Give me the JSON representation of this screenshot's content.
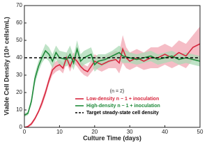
{
  "chart_data": {
    "type": "line",
    "xlabel": "Culture Time (days)",
    "ylabel": "Viable Cell Density (10⁶ cells/mL)",
    "annotation": "(n = 2)",
    "xlim": [
      0,
      50
    ],
    "xticks": [
      0,
      10,
      20,
      30,
      40,
      50
    ],
    "ylim": [
      0,
      70
    ],
    "yticks": [
      0,
      10,
      20,
      30,
      40,
      50,
      60,
      70
    ],
    "series": [
      {
        "name": "Low-density n − 1 + inoculation",
        "color": "#d7263d",
        "band_color": "#f2a7b3",
        "x": [
          0,
          1,
          2,
          3,
          4,
          5,
          6,
          7,
          8,
          9,
          10,
          11,
          12,
          13,
          14,
          15,
          16,
          17,
          18,
          20,
          22,
          24,
          26,
          27,
          28,
          29,
          30,
          32,
          34,
          36,
          38,
          40,
          42,
          44,
          46,
          48,
          50
        ],
        "values": [
          0,
          0.5,
          2,
          5,
          9,
          14,
          20,
          27,
          33,
          35,
          36,
          34,
          40,
          35,
          40,
          38,
          35,
          33,
          32,
          38,
          36,
          38,
          39,
          37,
          45,
          40,
          38,
          40,
          38,
          40,
          40,
          42,
          40,
          43,
          41,
          46,
          48
        ],
        "lower": [
          0,
          0,
          1,
          4,
          8,
          12,
          18,
          25,
          30,
          32,
          33,
          31,
          37,
          32,
          37,
          35,
          32,
          30,
          29,
          34,
          32,
          34,
          34,
          31,
          37,
          34,
          33,
          35,
          33,
          34,
          34,
          36,
          34,
          36,
          34,
          39,
          38
        ],
        "upper": [
          0,
          1,
          3,
          6,
          10,
          16,
          22,
          29,
          36,
          38,
          39,
          37,
          43,
          38,
          43,
          41,
          38,
          36,
          35,
          42,
          40,
          42,
          44,
          43,
          53,
          46,
          43,
          45,
          43,
          46,
          46,
          48,
          46,
          50,
          48,
          53,
          58
        ]
      },
      {
        "name": "High-density n − 1 + inoculation",
        "color": "#1f8a3a",
        "band_color": "#a9d9b4",
        "x": [
          0,
          1,
          2,
          3,
          4,
          5,
          6,
          7,
          8,
          9,
          10,
          12,
          13,
          14,
          15,
          16,
          17,
          19,
          20,
          21,
          23,
          25,
          27,
          28,
          30,
          32,
          34,
          36,
          38,
          40,
          42,
          44,
          46,
          48,
          50
        ],
        "values": [
          7,
          8,
          15,
          28,
          35,
          40,
          44,
          42,
          38,
          43,
          40,
          39,
          42,
          37,
          45,
          38,
          40,
          42,
          36,
          38,
          39,
          41,
          43,
          41,
          40,
          39,
          40,
          41,
          39,
          40,
          41,
          39,
          40,
          39,
          38
        ],
        "lower": [
          6,
          7,
          13,
          25,
          32,
          37,
          40,
          38,
          34,
          39,
          36,
          35,
          37,
          33,
          40,
          34,
          36,
          38,
          32,
          34,
          36,
          38,
          39,
          37,
          37,
          36,
          37,
          38,
          36,
          37,
          38,
          36,
          37,
          36,
          35
        ],
        "upper": [
          8,
          9,
          17,
          31,
          38,
          43,
          48,
          46,
          42,
          47,
          44,
          43,
          47,
          41,
          50,
          42,
          44,
          46,
          40,
          42,
          42,
          44,
          47,
          45,
          43,
          42,
          43,
          44,
          42,
          43,
          44,
          42,
          43,
          42,
          41
        ]
      }
    ],
    "target": {
      "name": "Target steady-state cell density",
      "value": 40,
      "color": "#000000"
    },
    "legend": "lower right"
  }
}
